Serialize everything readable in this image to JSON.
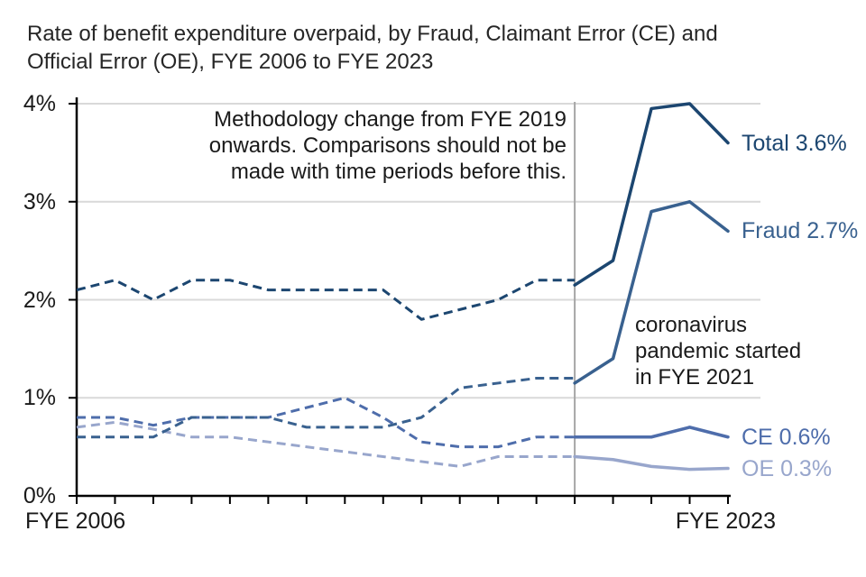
{
  "title": {
    "line1": "Rate of benefit expenditure overpaid, by Fraud, Claimant Error (CE) and",
    "line2": "Official Error (OE), FYE 2006 to FYE 2023"
  },
  "chart_data": {
    "type": "line",
    "title": "Rate of benefit expenditure overpaid, by Fraud, Claimant Error (CE) and Official Error (OE), FYE 2006 to FYE 2023",
    "x_axis": {
      "start_year": 2006,
      "end_year": 2023,
      "start_label": "FYE 2006",
      "end_label": "FYE 2023",
      "tick_years": [
        2006,
        2007,
        2008,
        2009,
        2010,
        2011,
        2012,
        2013,
        2014,
        2015,
        2016,
        2017,
        2018,
        2019,
        2020,
        2021,
        2022,
        2023
      ]
    },
    "y_axis": {
      "min": 0,
      "max": 4,
      "ticks": [
        "0%",
        "1%",
        "2%",
        "3%",
        "4%"
      ],
      "gridlines": true
    },
    "methodology_break_year": 2019,
    "line_style_note": "dashed before FYE 2019, solid from FYE 2019 onwards",
    "annotations": {
      "methodology": {
        "lines": [
          "Methodology change from FYE 2019",
          "onwards. Comparisons should not be",
          "made with time periods before this."
        ]
      },
      "coronavirus": {
        "lines": [
          "coronavirus",
          "pandemic started",
          "in FYE 2021"
        ]
      }
    },
    "series": [
      {
        "name": "OE",
        "label": "OE 0.3%",
        "color": "#98a6cc",
        "dashed": {
          "start_year": 2006,
          "values": [
            0.7,
            0.75,
            0.68,
            0.6,
            0.6,
            0.55,
            0.5,
            0.45,
            0.4,
            0.35,
            0.3,
            0.4,
            0.4,
            0.4
          ]
        },
        "solid": {
          "start_year": 2019,
          "values": [
            0.4,
            0.37,
            0.3,
            0.27,
            0.28
          ]
        }
      },
      {
        "name": "CE",
        "label": "CE 0.6%",
        "color": "#4e6dab",
        "dashed": {
          "start_year": 2006,
          "values": [
            0.8,
            0.8,
            0.72,
            0.8,
            0.8,
            0.8,
            0.9,
            1.0,
            0.8,
            0.55,
            0.5,
            0.5,
            0.6,
            0.6
          ]
        },
        "solid": {
          "start_year": 2019,
          "values": [
            0.6,
            0.6,
            0.6,
            0.7,
            0.6
          ]
        }
      },
      {
        "name": "Fraud",
        "label": "Fraud 2.7%",
        "color": "#39618f",
        "dashed": {
          "start_year": 2006,
          "values": [
            0.6,
            0.6,
            0.6,
            0.8,
            0.8,
            0.8,
            0.7,
            0.7,
            0.7,
            0.8,
            1.1,
            1.15,
            1.2,
            1.2
          ]
        },
        "solid": {
          "start_year": 2019,
          "values": [
            1.15,
            1.4,
            2.9,
            3.0,
            2.7
          ]
        }
      },
      {
        "name": "Total",
        "label": "Total 3.6%",
        "color": "#1c4670",
        "dashed": {
          "start_year": 2006,
          "values": [
            2.1,
            2.2,
            2.0,
            2.2,
            2.2,
            2.1,
            2.1,
            2.1,
            2.1,
            1.8,
            1.9,
            2.0,
            2.2,
            2.2
          ]
        },
        "solid": {
          "start_year": 2019,
          "values": [
            2.15,
            2.4,
            3.95,
            4.0,
            3.6
          ]
        }
      }
    ],
    "colors": {
      "gridline": "#d9d9d9",
      "axis": "#000000",
      "break_line": "#a6a6a6"
    }
  }
}
